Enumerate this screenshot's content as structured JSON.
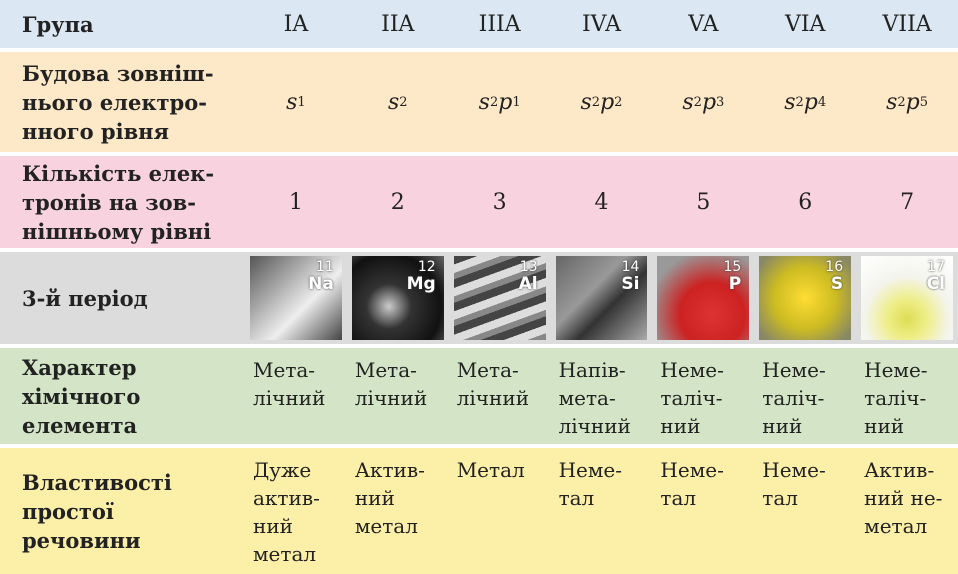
{
  "table": {
    "header": {
      "label": "Група",
      "groups": [
        "IA",
        "IIA",
        "IIIA",
        "IVA",
        "VA",
        "VIA",
        "VIIA"
      ]
    },
    "outer_level": {
      "label": [
        "Будова зовніш-",
        "нього електро-",
        "нного рівня"
      ],
      "configs": [
        [
          {
            "orbital": "s",
            "count": 1
          }
        ],
        [
          {
            "orbital": "s",
            "count": 2
          }
        ],
        [
          {
            "orbital": "s",
            "count": 2
          },
          {
            "orbital": "p",
            "count": 1
          }
        ],
        [
          {
            "orbital": "s",
            "count": 2
          },
          {
            "orbital": "p",
            "count": 2
          }
        ],
        [
          {
            "orbital": "s",
            "count": 2
          },
          {
            "orbital": "p",
            "count": 3
          }
        ],
        [
          {
            "orbital": "s",
            "count": 2
          },
          {
            "orbital": "p",
            "count": 4
          }
        ],
        [
          {
            "orbital": "s",
            "count": 2
          },
          {
            "orbital": "p",
            "count": 5
          }
        ]
      ]
    },
    "electron_count": {
      "label": [
        "Кількість елек-",
        "тронів на зов-",
        "нішньому рівні"
      ],
      "values": [
        1,
        2,
        3,
        4,
        5,
        6,
        7
      ]
    },
    "period3": {
      "label": "3-й період",
      "elements": [
        {
          "number": 11,
          "symbol": "Na"
        },
        {
          "number": 12,
          "symbol": "Mg"
        },
        {
          "number": 13,
          "symbol": "Al"
        },
        {
          "number": 14,
          "symbol": "Si"
        },
        {
          "number": 15,
          "symbol": "P"
        },
        {
          "number": 16,
          "symbol": "S"
        },
        {
          "number": 17,
          "symbol": "Cl"
        }
      ]
    },
    "character": {
      "label": [
        "Характер",
        "хімічного",
        "елемента"
      ],
      "cells": [
        [
          "Мета-",
          "лічний"
        ],
        [
          "Мета-",
          "лічний"
        ],
        [
          "Мета-",
          "лічний"
        ],
        [
          "Напів-",
          "мета-",
          "лічний"
        ],
        [
          "Неме-",
          "таліч-",
          "ний"
        ],
        [
          "Неме-",
          "таліч-",
          "ний"
        ],
        [
          "Неме-",
          "таліч-",
          "ний"
        ]
      ]
    },
    "properties": {
      "label": [
        "Властивості",
        "простої",
        "речовини"
      ],
      "cells": [
        [
          "Дуже",
          "актив-",
          "ний",
          "метал"
        ],
        [
          "Актив-",
          "ний",
          "метал"
        ],
        [
          "Метал"
        ],
        [
          "Неме-",
          "тал"
        ],
        [
          "Неме-",
          "тал"
        ],
        [
          "Неме-",
          "тал"
        ],
        [
          "Актив-",
          "ний не-",
          "метал"
        ]
      ]
    }
  }
}
